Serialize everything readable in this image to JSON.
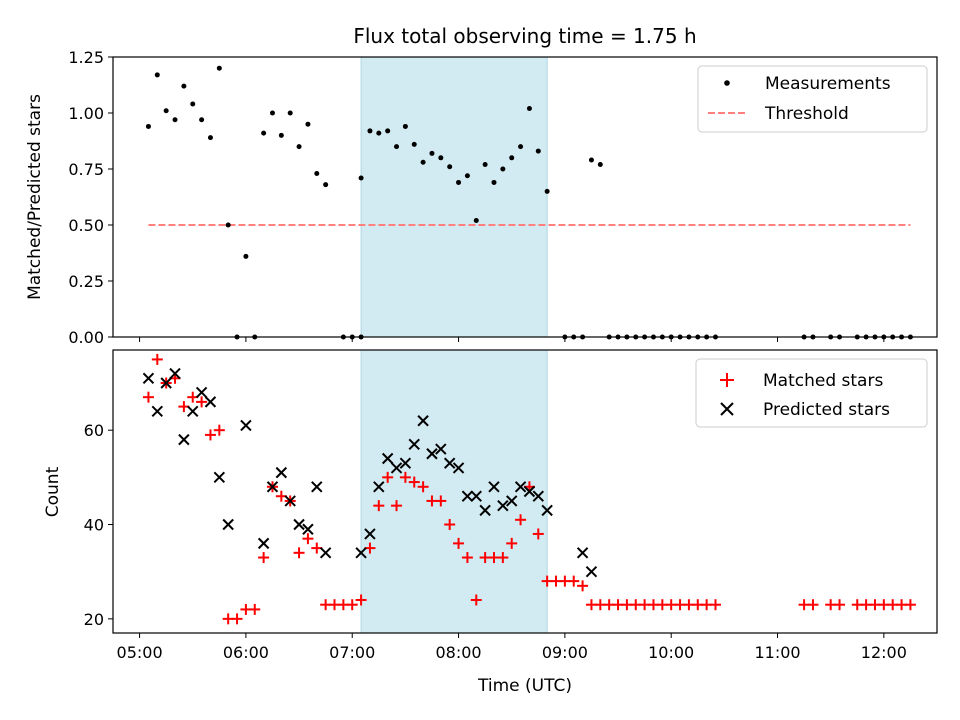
{
  "chart_data": [
    {
      "type": "scatter",
      "title": "Flux total observing time = 1.75 h",
      "xlabel": "",
      "ylabel": "Matched/Predicted stars",
      "xlim": [
        "04:45",
        "12:30"
      ],
      "ylim": [
        0,
        1.25
      ],
      "y_ticks": [
        0.0,
        0.25,
        0.5,
        0.75,
        1.0,
        1.25
      ],
      "y_tick_labels": [
        "0.00",
        "0.25",
        "0.50",
        "0.75",
        "1.00",
        "1.25"
      ],
      "shaded_span": [
        "07:05",
        "08:50"
      ],
      "shade_color": "#add8e6",
      "legend": "top-right",
      "legend_labels": [
        "Measurements",
        "Threshold"
      ],
      "series": [
        {
          "name": "Measurements",
          "marker": "dot",
          "color": "#000000",
          "points": [
            [
              "05:05",
              0.94
            ],
            [
              "05:10",
              1.17
            ],
            [
              "05:15",
              1.01
            ],
            [
              "05:20",
              0.97
            ],
            [
              "05:25",
              1.12
            ],
            [
              "05:30",
              1.04
            ],
            [
              "05:35",
              0.97
            ],
            [
              "05:40",
              0.89
            ],
            [
              "05:45",
              1.2
            ],
            [
              "05:50",
              0.5
            ],
            [
              "05:55",
              0.0
            ],
            [
              "06:00",
              0.36
            ],
            [
              "06:05",
              0.0
            ],
            [
              "06:10",
              0.91
            ],
            [
              "06:15",
              1.0
            ],
            [
              "06:20",
              0.9
            ],
            [
              "06:25",
              1.0
            ],
            [
              "06:30",
              0.85
            ],
            [
              "06:35",
              0.95
            ],
            [
              "06:40",
              0.73
            ],
            [
              "06:45",
              0.68
            ],
            [
              "06:55",
              0.0
            ],
            [
              "07:00",
              0.0
            ],
            [
              "07:05",
              0.0
            ],
            [
              "07:05",
              0.71
            ],
            [
              "07:10",
              0.92
            ],
            [
              "07:15",
              0.91
            ],
            [
              "07:20",
              0.92
            ],
            [
              "07:25",
              0.85
            ],
            [
              "07:30",
              0.94
            ],
            [
              "07:35",
              0.86
            ],
            [
              "07:40",
              0.78
            ],
            [
              "07:45",
              0.82
            ],
            [
              "07:50",
              0.8
            ],
            [
              "07:55",
              0.76
            ],
            [
              "08:00",
              0.69
            ],
            [
              "08:05",
              0.72
            ],
            [
              "08:10",
              0.52
            ],
            [
              "08:15",
              0.77
            ],
            [
              "08:20",
              0.69
            ],
            [
              "08:25",
              0.75
            ],
            [
              "08:30",
              0.8
            ],
            [
              "08:35",
              0.85
            ],
            [
              "08:40",
              1.02
            ],
            [
              "08:45",
              0.83
            ],
            [
              "08:50",
              0.65
            ],
            [
              "09:00",
              0.0
            ],
            [
              "09:05",
              0.0
            ],
            [
              "09:10",
              0.0
            ],
            [
              "09:15",
              0.79
            ],
            [
              "09:20",
              0.77
            ],
            [
              "09:25",
              0.0
            ],
            [
              "09:30",
              0.0
            ],
            [
              "09:35",
              0.0
            ],
            [
              "09:40",
              0.0
            ],
            [
              "09:45",
              0.0
            ],
            [
              "09:50",
              0.0
            ],
            [
              "09:55",
              0.0
            ],
            [
              "10:00",
              0.0
            ],
            [
              "10:05",
              0.0
            ],
            [
              "10:10",
              0.0
            ],
            [
              "10:15",
              0.0
            ],
            [
              "10:20",
              0.0
            ],
            [
              "10:25",
              0.0
            ],
            [
              "11:15",
              0.0
            ],
            [
              "11:20",
              0.0
            ],
            [
              "11:30",
              0.0
            ],
            [
              "11:35",
              0.0
            ],
            [
              "11:45",
              0.0
            ],
            [
              "11:50",
              0.0
            ],
            [
              "11:55",
              0.0
            ],
            [
              "12:00",
              0.0
            ],
            [
              "12:05",
              0.0
            ],
            [
              "12:10",
              0.0
            ],
            [
              "12:15",
              0.0
            ]
          ]
        },
        {
          "name": "Threshold",
          "style": "dashed",
          "color": "#ff7f7f",
          "points": [
            [
              "05:05",
              0.5
            ],
            [
              "12:15",
              0.5
            ]
          ]
        }
      ]
    },
    {
      "type": "scatter",
      "title": "",
      "xlabel": "Time (UTC)",
      "ylabel": "Count",
      "xlim": [
        "04:45",
        "12:30"
      ],
      "ylim": [
        17,
        77
      ],
      "y_ticks": [
        20,
        40,
        60
      ],
      "y_tick_labels": [
        "20",
        "40",
        "60"
      ],
      "x_ticks": [
        "05:00",
        "06:00",
        "07:00",
        "08:00",
        "09:00",
        "10:00",
        "11:00",
        "12:00"
      ],
      "x_tick_labels": [
        "05:00",
        "06:00",
        "07:00",
        "08:00",
        "09:00",
        "10:00",
        "11:00",
        "12:00"
      ],
      "shaded_span": [
        "07:05",
        "08:50"
      ],
      "shade_color": "#add8e6",
      "legend": "top-right",
      "legend_labels": [
        "Matched stars",
        "Predicted stars"
      ],
      "series": [
        {
          "name": "Matched stars",
          "marker": "plus",
          "color": "#ff0000",
          "points": [
            [
              "05:05",
              67
            ],
            [
              "05:10",
              75
            ],
            [
              "05:15",
              70
            ],
            [
              "05:20",
              71
            ],
            [
              "05:25",
              65
            ],
            [
              "05:30",
              67
            ],
            [
              "05:35",
              66
            ],
            [
              "05:40",
              59
            ],
            [
              "05:45",
              60
            ],
            [
              "05:50",
              20
            ],
            [
              "05:55",
              20
            ],
            [
              "06:00",
              22
            ],
            [
              "06:05",
              22
            ],
            [
              "06:10",
              33
            ],
            [
              "06:15",
              48
            ],
            [
              "06:20",
              46
            ],
            [
              "06:25",
              45
            ],
            [
              "06:30",
              34
            ],
            [
              "06:35",
              37
            ],
            [
              "06:40",
              35
            ],
            [
              "06:45",
              23
            ],
            [
              "06:50",
              23
            ],
            [
              "06:55",
              23
            ],
            [
              "07:00",
              23
            ],
            [
              "07:05",
              24
            ],
            [
              "07:10",
              35
            ],
            [
              "07:15",
              44
            ],
            [
              "07:20",
              50
            ],
            [
              "07:25",
              44
            ],
            [
              "07:30",
              50
            ],
            [
              "07:35",
              49
            ],
            [
              "07:40",
              48
            ],
            [
              "07:45",
              45
            ],
            [
              "07:50",
              45
            ],
            [
              "07:55",
              40
            ],
            [
              "08:00",
              36
            ],
            [
              "08:05",
              33
            ],
            [
              "08:10",
              24
            ],
            [
              "08:15",
              33
            ],
            [
              "08:20",
              33
            ],
            [
              "08:25",
              33
            ],
            [
              "08:30",
              36
            ],
            [
              "08:35",
              41
            ],
            [
              "08:40",
              48
            ],
            [
              "08:45",
              38
            ],
            [
              "08:50",
              28
            ],
            [
              "08:55",
              28
            ],
            [
              "09:00",
              28
            ],
            [
              "09:05",
              28
            ],
            [
              "09:10",
              27
            ],
            [
              "09:15",
              23
            ],
            [
              "09:20",
              23
            ],
            [
              "09:25",
              23
            ],
            [
              "09:30",
              23
            ],
            [
              "09:35",
              23
            ],
            [
              "09:40",
              23
            ],
            [
              "09:45",
              23
            ],
            [
              "09:50",
              23
            ],
            [
              "09:55",
              23
            ],
            [
              "10:00",
              23
            ],
            [
              "10:05",
              23
            ],
            [
              "10:10",
              23
            ],
            [
              "10:15",
              23
            ],
            [
              "10:20",
              23
            ],
            [
              "10:25",
              23
            ],
            [
              "11:15",
              23
            ],
            [
              "11:20",
              23
            ],
            [
              "11:30",
              23
            ],
            [
              "11:35",
              23
            ],
            [
              "11:45",
              23
            ],
            [
              "11:50",
              23
            ],
            [
              "11:55",
              23
            ],
            [
              "12:00",
              23
            ],
            [
              "12:05",
              23
            ],
            [
              "12:10",
              23
            ],
            [
              "12:15",
              23
            ]
          ]
        },
        {
          "name": "Predicted stars",
          "marker": "x",
          "color": "#000000",
          "points": [
            [
              "05:05",
              71
            ],
            [
              "05:10",
              64
            ],
            [
              "05:15",
              70
            ],
            [
              "05:20",
              72
            ],
            [
              "05:25",
              58
            ],
            [
              "05:30",
              64
            ],
            [
              "05:35",
              68
            ],
            [
              "05:40",
              66
            ],
            [
              "05:45",
              50
            ],
            [
              "05:50",
              40
            ],
            [
              "06:00",
              61
            ],
            [
              "06:10",
              36
            ],
            [
              "06:15",
              48
            ],
            [
              "06:20",
              51
            ],
            [
              "06:25",
              45
            ],
            [
              "06:30",
              40
            ],
            [
              "06:35",
              39
            ],
            [
              "06:40",
              48
            ],
            [
              "06:45",
              34
            ],
            [
              "07:05",
              34
            ],
            [
              "07:10",
              38
            ],
            [
              "07:15",
              48
            ],
            [
              "07:20",
              54
            ],
            [
              "07:25",
              52
            ],
            [
              "07:30",
              53
            ],
            [
              "07:35",
              57
            ],
            [
              "07:40",
              62
            ],
            [
              "07:45",
              55
            ],
            [
              "07:50",
              56
            ],
            [
              "07:55",
              53
            ],
            [
              "08:00",
              52
            ],
            [
              "08:05",
              46
            ],
            [
              "08:10",
              46
            ],
            [
              "08:15",
              43
            ],
            [
              "08:20",
              48
            ],
            [
              "08:25",
              44
            ],
            [
              "08:30",
              45
            ],
            [
              "08:35",
              48
            ],
            [
              "08:40",
              47
            ],
            [
              "08:45",
              46
            ],
            [
              "08:50",
              43
            ],
            [
              "09:10",
              34
            ],
            [
              "09:15",
              30
            ]
          ]
        }
      ]
    }
  ]
}
